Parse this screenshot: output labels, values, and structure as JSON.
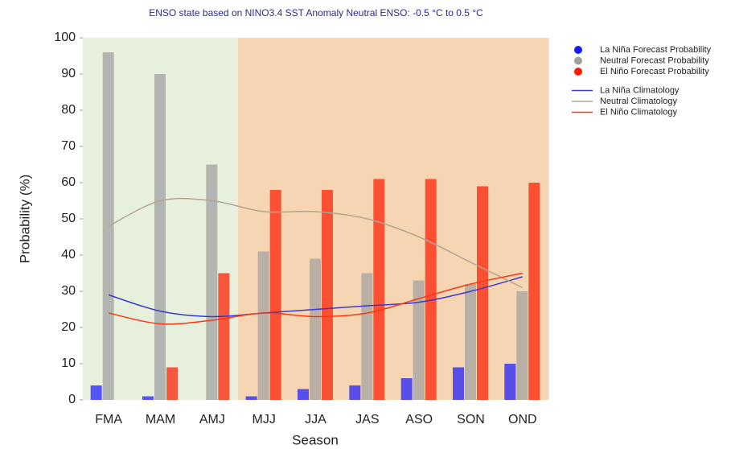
{
  "chart_data": {
    "type": "bar",
    "title": "ENSO state based on NINO3.4 SST Anomaly Neutral ENSO: -0.5 °C to 0.5 °C",
    "x_label": "Season",
    "y_label": "Probability (%)",
    "categories": [
      "FMA",
      "MAM",
      "AMJ",
      "MJJ",
      "JJA",
      "JAS",
      "ASO",
      "SON",
      "OND"
    ],
    "region_colors": [
      "#e6f0dc",
      "#e6f0dc",
      "#e6f0dc",
      "#f6d6b2",
      "#f6d6b2",
      "#f6d6b2",
      "#f6d6b2",
      "#f6d6b2",
      "#f6d6b2"
    ],
    "ylim": [
      0,
      100
    ],
    "yticks": [
      0,
      10,
      20,
      30,
      40,
      50,
      60,
      70,
      80,
      90,
      100
    ],
    "series": [
      {
        "name": "La Niña Forecast Probability",
        "type": "bar",
        "color": "#1a1aff",
        "values": [
          4,
          1,
          0,
          1,
          3,
          4,
          6,
          9,
          10
        ]
      },
      {
        "name": "Neutral Forecast Probability",
        "type": "bar",
        "color": "#a0a0a0",
        "values": [
          96,
          90,
          65,
          41,
          39,
          35,
          33,
          32,
          30
        ]
      },
      {
        "name": "El Niño Forecast Probability",
        "type": "bar",
        "color": "#ff1a00",
        "values": [
          0,
          9,
          35,
          58,
          58,
          61,
          61,
          59,
          60
        ]
      },
      {
        "name": "La Niña Climatology",
        "type": "line",
        "color": "#3a3acc",
        "values": [
          29,
          24.5,
          23,
          24,
          25,
          26,
          27,
          30,
          34
        ]
      },
      {
        "name": "Neutral Climatology",
        "type": "line",
        "color": "#b4a590",
        "values": [
          48,
          55,
          55,
          52,
          52,
          50,
          45,
          38,
          31
        ]
      },
      {
        "name": "El Niño Climatology",
        "type": "line",
        "color": "#ff3512",
        "values": [
          24,
          21,
          22,
          24,
          23,
          24,
          28,
          32,
          35
        ]
      }
    ]
  }
}
